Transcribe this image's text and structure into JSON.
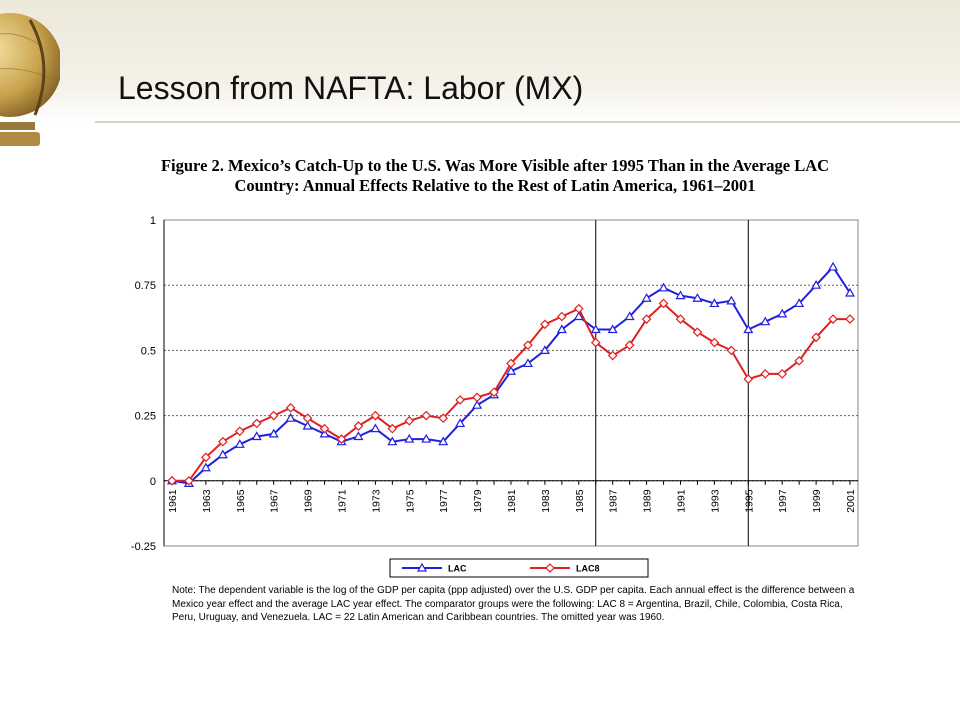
{
  "slide": {
    "title": "Lesson from NAFTA: Labor (MX)"
  },
  "figure": {
    "title_line1": "Figure 2. Mexico’s Catch-Up to the U.S. Was More Visible after 1995 Than in the Average LAC",
    "title_line2": "Country: Annual Effects Relative to the Rest of Latin America, 1961–2001",
    "note": "Note: The dependent variable is the log of the GDP per capita (ppp adjusted) over the U.S. GDP per capita. Each annual effect is the difference between a Mexico year effect and the average LAC year effect. The comparator groups were the following: LAC 8 = Argentina, Brazil, Chile, Colombia, Costa Rica, Peru, Uruguay, and Venezuela. LAC = 22 Latin American and Caribbean countries. The omitted year was 1960."
  },
  "chart_data": {
    "type": "line",
    "x": [
      1961,
      1962,
      1963,
      1964,
      1965,
      1966,
      1967,
      1968,
      1969,
      1970,
      1971,
      1972,
      1973,
      1974,
      1975,
      1976,
      1977,
      1978,
      1979,
      1980,
      1981,
      1982,
      1983,
      1984,
      1985,
      1986,
      1987,
      1988,
      1989,
      1990,
      1991,
      1992,
      1993,
      1994,
      1995,
      1996,
      1997,
      1998,
      1999,
      2000,
      2001
    ],
    "x_tick_labels": [
      "1961",
      "1963",
      "1965",
      "1967",
      "1969",
      "1971",
      "1973",
      "1975",
      "1977",
      "1979",
      "1981",
      "1983",
      "1985",
      "1987",
      "1989",
      "1991",
      "1993",
      "1995",
      "1997",
      "1999",
      "2001"
    ],
    "ylim": [
      -0.25,
      1
    ],
    "y_tick_labels": [
      "1",
      "0.75",
      "0.5",
      "0.25",
      "0",
      "-0.25"
    ],
    "y_ticks": [
      1,
      0.75,
      0.5,
      0.25,
      0,
      -0.25
    ],
    "grid": "horizontal dashed",
    "vertical_lines": [
      1986,
      1995
    ],
    "legend_position": "bottom",
    "series": [
      {
        "name": "LAC",
        "color": "#2020e0",
        "marker": "triangle",
        "values": [
          0.0,
          -0.01,
          0.05,
          0.1,
          0.14,
          0.17,
          0.18,
          0.24,
          0.21,
          0.18,
          0.15,
          0.17,
          0.2,
          0.15,
          0.16,
          0.16,
          0.15,
          0.22,
          0.29,
          0.33,
          0.42,
          0.45,
          0.5,
          0.58,
          0.63,
          0.58,
          0.58,
          0.63,
          0.7,
          0.74,
          0.71,
          0.7,
          0.68,
          0.69,
          0.58,
          0.61,
          0.64,
          0.68,
          0.75,
          0.82,
          0.72
        ]
      },
      {
        "name": "LAC8",
        "color": "#e02020",
        "marker": "diamond",
        "values": [
          0.0,
          0.0,
          0.09,
          0.15,
          0.19,
          0.22,
          0.25,
          0.28,
          0.24,
          0.2,
          0.16,
          0.21,
          0.25,
          0.2,
          0.23,
          0.25,
          0.24,
          0.31,
          0.32,
          0.34,
          0.45,
          0.52,
          0.6,
          0.63,
          0.66,
          0.53,
          0.48,
          0.52,
          0.62,
          0.68,
          0.62,
          0.57,
          0.53,
          0.5,
          0.39,
          0.41,
          0.41,
          0.46,
          0.55,
          0.62,
          0.62
        ]
      }
    ]
  },
  "colors": {
    "accent_line": "#d8d2bd",
    "header_band": "#ece8da"
  }
}
